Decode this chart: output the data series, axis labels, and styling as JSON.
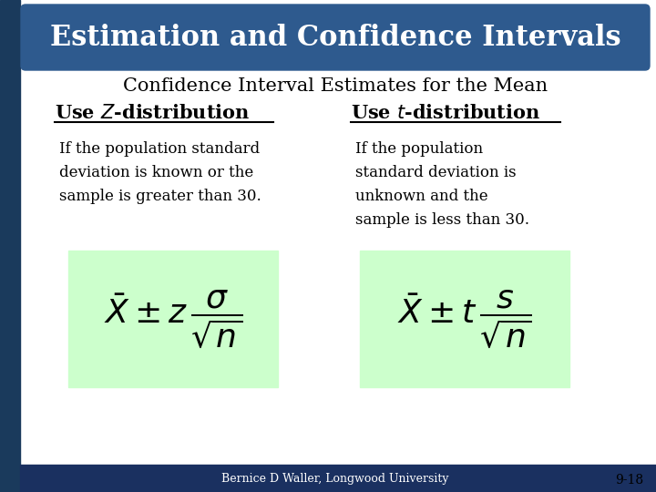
{
  "title": "Estimation and Confidence Intervals",
  "subtitle": "Confidence Interval Estimates for the Mean",
  "left_text": "If the population standard\ndeviation is known or the\nsample is greater than 30.",
  "right_text": "If the population\nstandard deviation is\nunknown and the\nsample is less than 30.",
  "footer": "Bernice D Waller, Longwood University",
  "page_num": "9-18",
  "bg_color": "#ffffff",
  "title_bg": "#2E5A8E",
  "title_fg": "#ffffff",
  "left_strip": "#1a3a5c",
  "formula_bg": "#ccffcc",
  "footer_bg": "#1a3060",
  "footer_fg": "#ffffff",
  "heading_color": "#000000",
  "text_color": "#000000"
}
